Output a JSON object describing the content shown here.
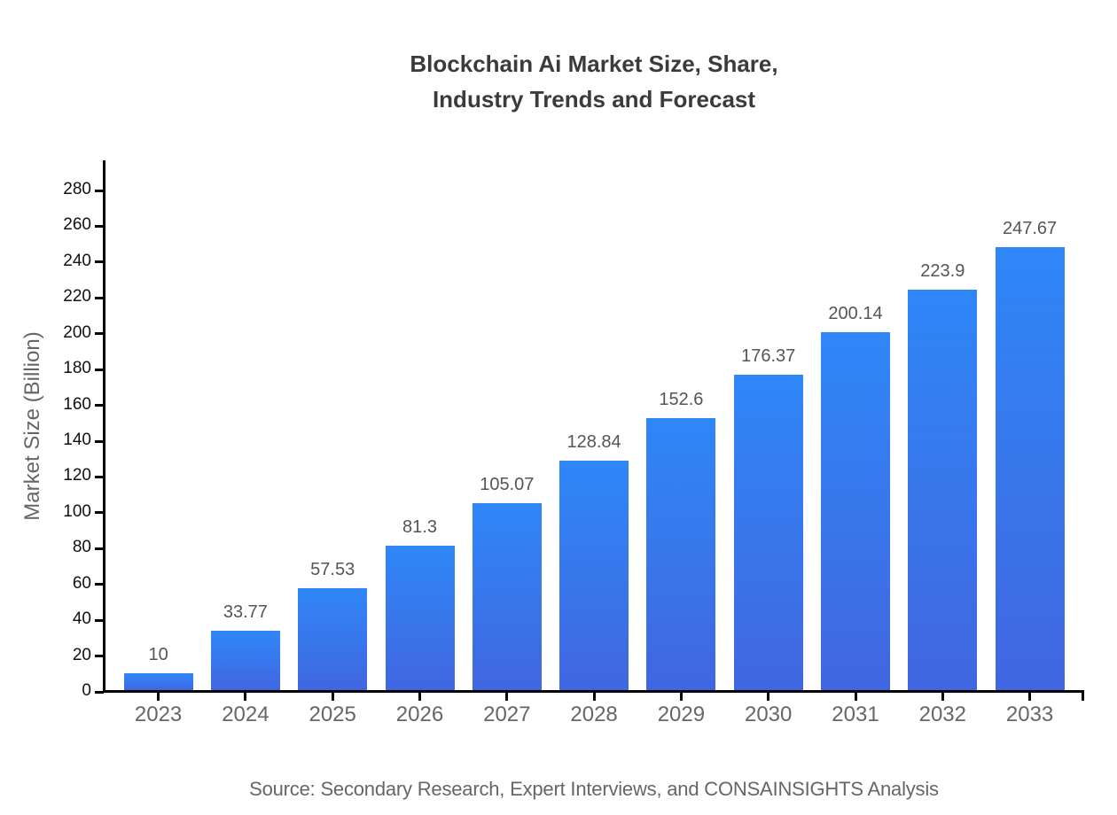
{
  "page": {
    "background": "#ffffff"
  },
  "chart_data": {
    "type": "bar",
    "title_lines": [
      "Blockchain Ai Market Size, Share,",
      "Industry Trends and Forecast"
    ],
    "title": "Blockchain Ai Market Size, Share, Industry Trends and Forecast",
    "categories": [
      "2023",
      "2024",
      "2025",
      "2026",
      "2027",
      "2028",
      "2029",
      "2030",
      "2031",
      "2032",
      "2033"
    ],
    "values": [
      10,
      33.77,
      57.53,
      81.3,
      105.07,
      128.84,
      152.6,
      176.37,
      200.14,
      223.9,
      247.67
    ],
    "value_labels": [
      "10",
      "33.77",
      "57.53",
      "81.3",
      "105.07",
      "128.84",
      "152.6",
      "176.37",
      "200.14",
      "223.9",
      "247.67"
    ],
    "xlabel": "",
    "ylabel": "Market Size (Billion)",
    "ylim": [
      0,
      296
    ],
    "yticks": [
      0,
      20,
      40,
      60,
      80,
      100,
      120,
      140,
      160,
      180,
      200,
      220,
      240,
      260,
      280
    ],
    "grid": false,
    "legend": "none",
    "source_note": "Source: Secondary Research, Expert Interviews, and CONSAINSIGHTS Analysis",
    "colors": {
      "bar_gradient_top": "#2f87f7",
      "bar_gradient_bottom": "#4166e1",
      "axis": "#000000",
      "y_tick_label": "#111111",
      "x_tick_label": "#666666",
      "value_label": "#555555",
      "axis_title": "#666666",
      "title": "#3b3b3b",
      "source": "#666666"
    }
  }
}
